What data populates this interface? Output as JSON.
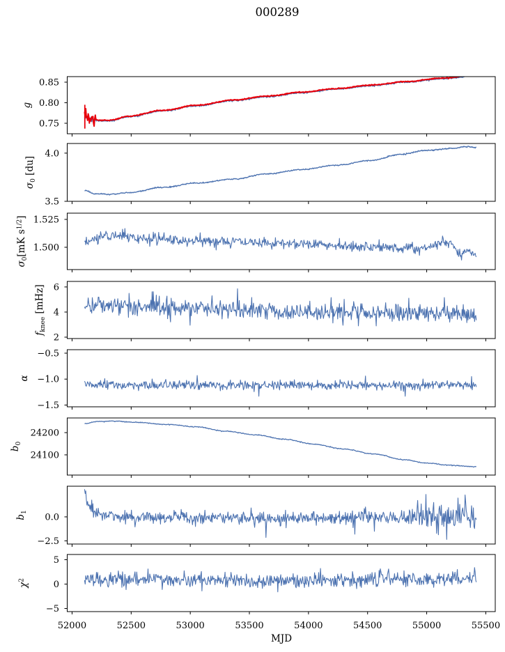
{
  "chart_data": {
    "type": "line",
    "title": "000289",
    "xlabel": "MJD",
    "xlim": [
      51959,
      55580
    ],
    "xticks": [
      52000,
      52500,
      53000,
      53500,
      54000,
      54500,
      55000,
      55500
    ],
    "xtick_labels": [
      "52000",
      "52500",
      "53000",
      "53500",
      "54000",
      "54500",
      "55000",
      "55500"
    ],
    "x_data_range": [
      52106,
      55420
    ],
    "grid": false,
    "legend": "none",
    "colors": {
      "line": "#4C72B0",
      "overlay": "#E8000B",
      "axis": "#000000",
      "background": "#FFFFFF"
    },
    "panels": [
      {
        "id": "g",
        "ylabel_text": "g",
        "ylabel_parts": [
          {
            "t": "g",
            "i": true
          }
        ],
        "ylim": [
          0.7245,
          0.8635
        ],
        "yticks": [
          0.75,
          0.8,
          0.85
        ],
        "ytick_labels": [
          "0.75",
          "0.80",
          "0.85"
        ],
        "series": [
          {
            "name": "g-data",
            "color": "#4C72B0",
            "width": 1.4,
            "seed": 11,
            "noise": 0.0009,
            "start_noise": {
              "until": 52170,
              "sigma": 0.003
            },
            "trend": [
              [
                52106,
                0.7685
              ],
              [
                52150,
                0.76
              ],
              [
                52230,
                0.756
              ],
              [
                52330,
                0.756
              ],
              [
                52470,
                0.7655
              ],
              [
                52770,
                0.78
              ],
              [
                53060,
                0.7925
              ],
              [
                53360,
                0.805
              ],
              [
                53650,
                0.8145
              ],
              [
                53940,
                0.824
              ],
              [
                54240,
                0.833
              ],
              [
                54530,
                0.8415
              ],
              [
                54830,
                0.85
              ],
              [
                55120,
                0.858
              ],
              [
                55420,
                0.8655
              ]
            ]
          },
          {
            "name": "g-model",
            "color": "#E8000B",
            "width": 2.0,
            "seed": 12,
            "noise": 0.0006,
            "offset": 0.0015,
            "start_noise": {
              "until": 52200,
              "sigma": 0.007
            },
            "error_bar": {
              "x": 52108,
              "y0": 0.737,
              "y1": 0.795
            },
            "trend": [
              [
                52106,
                0.7685
              ],
              [
                52150,
                0.76
              ],
              [
                52230,
                0.756
              ],
              [
                52330,
                0.756
              ],
              [
                52470,
                0.7655
              ],
              [
                52770,
                0.78
              ],
              [
                53060,
                0.7925
              ],
              [
                53360,
                0.805
              ],
              [
                53650,
                0.8145
              ],
              [
                53940,
                0.824
              ],
              [
                54240,
                0.833
              ],
              [
                54530,
                0.8415
              ],
              [
                54830,
                0.85
              ],
              [
                55120,
                0.858
              ],
              [
                55420,
                0.8655
              ]
            ]
          }
        ]
      },
      {
        "id": "sigma0-du",
        "ylabel_text": "σ0 [du]",
        "ylabel_parts": [
          {
            "t": "σ",
            "i": true
          },
          {
            "t": "0",
            "sub": true
          },
          {
            "t": " [du]"
          }
        ],
        "ylim": [
          3.5,
          4.1
        ],
        "yticks": [
          3.5,
          4.0
        ],
        "ytick_labels": [
          "3.5",
          "4.0"
        ],
        "series": [
          {
            "name": "sigma0-du-data",
            "color": "#4C72B0",
            "width": 1.4,
            "seed": 21,
            "noise": 0.0032,
            "trend": [
              [
                52106,
                3.614
              ],
              [
                52200,
                3.576
              ],
              [
                52320,
                3.573
              ],
              [
                52480,
                3.59
              ],
              [
                52770,
                3.645
              ],
              [
                53060,
                3.69
              ],
              [
                53360,
                3.73
              ],
              [
                53650,
                3.785
              ],
              [
                53940,
                3.829
              ],
              [
                54240,
                3.875
              ],
              [
                54530,
                3.924
              ],
              [
                54790,
                3.99
              ],
              [
                54990,
                4.028
              ],
              [
                55220,
                4.05
              ],
              [
                55340,
                4.068
              ],
              [
                55420,
                4.059
              ]
            ]
          }
        ]
      },
      {
        "id": "sigma0-mks",
        "ylabel_text": "σ0[mK s1/2]",
        "ylabel_parts": [
          {
            "t": "σ",
            "i": true
          },
          {
            "t": "0",
            "sub": true
          },
          {
            "t": "[mK s"
          },
          {
            "t": "1/2",
            "sup": true
          },
          {
            "t": "]"
          }
        ],
        "ylim": [
          1.48,
          1.5306
        ],
        "yticks": [
          1.5,
          1.525
        ],
        "ytick_labels": [
          "1.500",
          "1.525"
        ],
        "series": [
          {
            "name": "sigma0-mks-data",
            "color": "#4C72B0",
            "width": 1.1,
            "seed": 31,
            "noise": 0.0024,
            "trend": [
              [
                52106,
                1.504
              ],
              [
                52250,
                1.5095
              ],
              [
                52370,
                1.5115
              ],
              [
                52520,
                1.5085
              ],
              [
                52700,
                1.5075
              ],
              [
                53000,
                1.5055
              ],
              [
                53300,
                1.5055
              ],
              [
                53600,
                1.5035
              ],
              [
                53900,
                1.504
              ],
              [
                54200,
                1.502
              ],
              [
                54500,
                1.5005
              ],
              [
                54750,
                1.4995
              ],
              [
                54950,
                1.4985
              ],
              [
                55120,
                1.5035
              ],
              [
                55190,
                1.5055
              ],
              [
                55280,
                1.4935
              ],
              [
                55360,
                1.4965
              ],
              [
                55420,
                1.495
              ]
            ]
          }
        ]
      },
      {
        "id": "fknee",
        "ylabel_text": "fknee [mHz]",
        "ylabel_parts": [
          {
            "t": "f",
            "i": true
          },
          {
            "t": "knee",
            "sub": true
          },
          {
            "t": " [mHz]"
          }
        ],
        "ylim": [
          1.89,
          6.44
        ],
        "yticks": [
          2,
          4,
          6
        ],
        "ytick_labels": [
          "2",
          "4",
          "6"
        ],
        "series": [
          {
            "name": "fknee-data",
            "color": "#4C72B0",
            "width": 1.1,
            "seed": 41,
            "noise": 0.36,
            "spikes": [
              [
                52690,
                5.62
              ],
              [
                53400,
                5.85
              ],
              [
                53185,
                5.3
              ],
              [
                54190,
                5.15
              ],
              [
                54850,
                5.1
              ],
              [
                55150,
                5.15
              ],
              [
                53000,
                2.95
              ],
              [
                54420,
                2.9
              ]
            ],
            "trend": [
              [
                52106,
                4.62
              ],
              [
                52400,
                4.5
              ],
              [
                52800,
                4.42
              ],
              [
                53200,
                4.25
              ],
              [
                53600,
                4.12
              ],
              [
                54000,
                4.02
              ],
              [
                54400,
                3.95
              ],
              [
                54800,
                3.9
              ],
              [
                55100,
                3.87
              ],
              [
                55420,
                3.82
              ]
            ]
          }
        ]
      },
      {
        "id": "alpha",
        "ylabel_text": "α",
        "ylabel_parts": [
          {
            "t": "α",
            "i": true
          }
        ],
        "ylim": [
          -1.534,
          -0.433
        ],
        "yticks": [
          -1.5,
          -1.0,
          -0.5
        ],
        "ytick_labels": [
          "−1.5",
          "−1.0",
          "−0.5"
        ],
        "series": [
          {
            "name": "alpha-data",
            "color": "#4C72B0",
            "width": 1.1,
            "seed": 51,
            "noise": 0.043,
            "spikes": [
              [
                53060,
                -0.93
              ],
              [
                53580,
                -1.33
              ],
              [
                54480,
                -0.94
              ],
              [
                54820,
                -1.33
              ],
              [
                55380,
                -0.95
              ]
            ],
            "trend": [
              [
                52106,
                -1.115
              ],
              [
                52800,
                -1.12
              ],
              [
                53600,
                -1.125
              ],
              [
                54400,
                -1.125
              ],
              [
                55420,
                -1.12
              ]
            ]
          }
        ]
      },
      {
        "id": "b0",
        "ylabel_text": "b0",
        "ylabel_parts": [
          {
            "t": "b",
            "i": true
          },
          {
            "t": "0",
            "sub": true
          }
        ],
        "ylim": [
          24009,
          24266
        ],
        "yticks": [
          24100,
          24200
        ],
        "ytick_labels": [
          "24100",
          "24200"
        ],
        "series": [
          {
            "name": "b0-data",
            "color": "#4C72B0",
            "width": 1.3,
            "seed": 61,
            "noise": 1.0,
            "trend": [
              [
                52106,
                24241
              ],
              [
                52220,
                24250
              ],
              [
                52350,
                24252
              ],
              [
                52550,
                24246
              ],
              [
                52800,
                24237
              ],
              [
                53050,
                24226
              ],
              [
                53300,
                24206
              ],
              [
                53550,
                24190
              ],
              [
                53800,
                24170
              ],
              [
                54050,
                24148
              ],
              [
                54300,
                24126
              ],
              [
                54550,
                24104
              ],
              [
                54810,
                24078
              ],
              [
                55000,
                24063
              ],
              [
                55200,
                24053
              ],
              [
                55420,
                24046
              ]
            ]
          }
        ]
      },
      {
        "id": "b1",
        "ylabel_text": "b1",
        "ylabel_parts": [
          {
            "t": "b",
            "i": true
          },
          {
            "t": "1",
            "sub": true
          }
        ],
        "ylim": [
          -2.83,
          3.19
        ],
        "yticks": [
          -2.5,
          0.0
        ],
        "ytick_labels": [
          "−2.5",
          "0.0"
        ],
        "series": [
          {
            "name": "b1-data",
            "color": "#4C72B0",
            "width": 1.1,
            "seed": 71,
            "noise": [
              [
                52106,
                0.45
              ],
              [
                52300,
                0.33
              ],
              [
                54800,
                0.36
              ],
              [
                55000,
                0.7
              ],
              [
                55420,
                0.75
              ]
            ],
            "spikes": [
              [
                53640,
                -2.15
              ],
              [
                54390,
                -1.8
              ],
              [
                55170,
                -2.35
              ],
              [
                55060,
                1.5
              ],
              [
                55330,
                1.55
              ],
              [
                54560,
                -1.5
              ]
            ],
            "trend": [
              [
                52106,
                2.7
              ],
              [
                52135,
                1.6
              ],
              [
                52165,
                0.8
              ],
              [
                52210,
                0.35
              ],
              [
                52300,
                0.1
              ],
              [
                52450,
                -0.05
              ],
              [
                53300,
                -0.08
              ],
              [
                54200,
                -0.1
              ],
              [
                54900,
                -0.02
              ],
              [
                55420,
                0.05
              ]
            ]
          }
        ]
      },
      {
        "id": "chi2",
        "ylabel_text": "χ2",
        "ylabel_parts": [
          {
            "t": "χ",
            "i": true
          },
          {
            "t": "2",
            "sup": true
          }
        ],
        "ylim": [
          -5.64,
          6.07
        ],
        "yticks": [
          -5,
          0,
          5
        ],
        "ytick_labels": [
          "−5",
          "0",
          "5"
        ],
        "series": [
          {
            "name": "chi2-data",
            "color": "#4C72B0",
            "width": 1.1,
            "seed": 81,
            "noise": 0.72,
            "spikes": [
              [
                52640,
                3.1
              ],
              [
                53100,
                -1.4
              ],
              [
                53740,
                -1.6
              ],
              [
                54100,
                3.2
              ],
              [
                54680,
                3.1
              ],
              [
                55260,
                3.0
              ]
            ],
            "trend": [
              [
                52106,
                0.95
              ],
              [
                52700,
                1.0
              ],
              [
                53200,
                0.85
              ],
              [
                53700,
                0.65
              ],
              [
                54200,
                0.9
              ],
              [
                54700,
                1.0
              ],
              [
                55420,
                1.15
              ]
            ]
          }
        ]
      }
    ]
  }
}
